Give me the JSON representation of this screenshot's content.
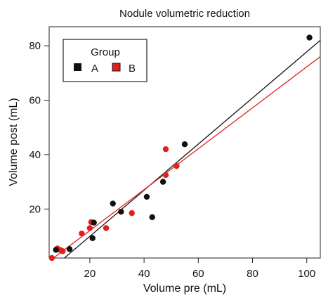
{
  "chart_data": {
    "type": "scatter",
    "title": "Nodule volumetric reduction",
    "xlabel": "Volume pre (mL)",
    "ylabel": "Volume post (mL)",
    "xlim": [
      5,
      105
    ],
    "ylim": [
      2,
      87
    ],
    "xticks": [
      20,
      40,
      60,
      80,
      100
    ],
    "yticks": [
      20,
      40,
      60,
      80
    ],
    "grid": false,
    "legend": {
      "title": "Group",
      "placement": "top-left"
    },
    "series": [
      {
        "name": "A",
        "color": "#111111",
        "points": [
          [
            7.5,
            5.0
          ],
          [
            12.5,
            5.3
          ],
          [
            21.0,
            9.3
          ],
          [
            21.5,
            15.0
          ],
          [
            28.5,
            22.0
          ],
          [
            31.5,
            19.0
          ],
          [
            41.0,
            24.5
          ],
          [
            43.0,
            17.0
          ],
          [
            47.0,
            30.0
          ],
          [
            55.0,
            43.8
          ],
          [
            101.0,
            83.0
          ]
        ],
        "fit": {
          "x": [
            10.6,
            105
          ],
          "y": [
            2,
            82
          ]
        }
      },
      {
        "name": "B",
        "color": "#e02020",
        "points": [
          [
            6.0,
            2.0
          ],
          [
            8.0,
            5.5
          ],
          [
            9.0,
            5.0
          ],
          [
            10.0,
            4.5
          ],
          [
            17.0,
            11.0
          ],
          [
            20.0,
            13.0
          ],
          [
            20.5,
            15.2
          ],
          [
            26.0,
            13.0
          ],
          [
            35.5,
            18.5
          ],
          [
            48.0,
            42.0
          ],
          [
            48.0,
            32.5
          ],
          [
            52.0,
            35.8
          ]
        ],
        "fit": {
          "x": [
            6.6,
            105
          ],
          "y": [
            2,
            76
          ]
        }
      }
    ]
  }
}
